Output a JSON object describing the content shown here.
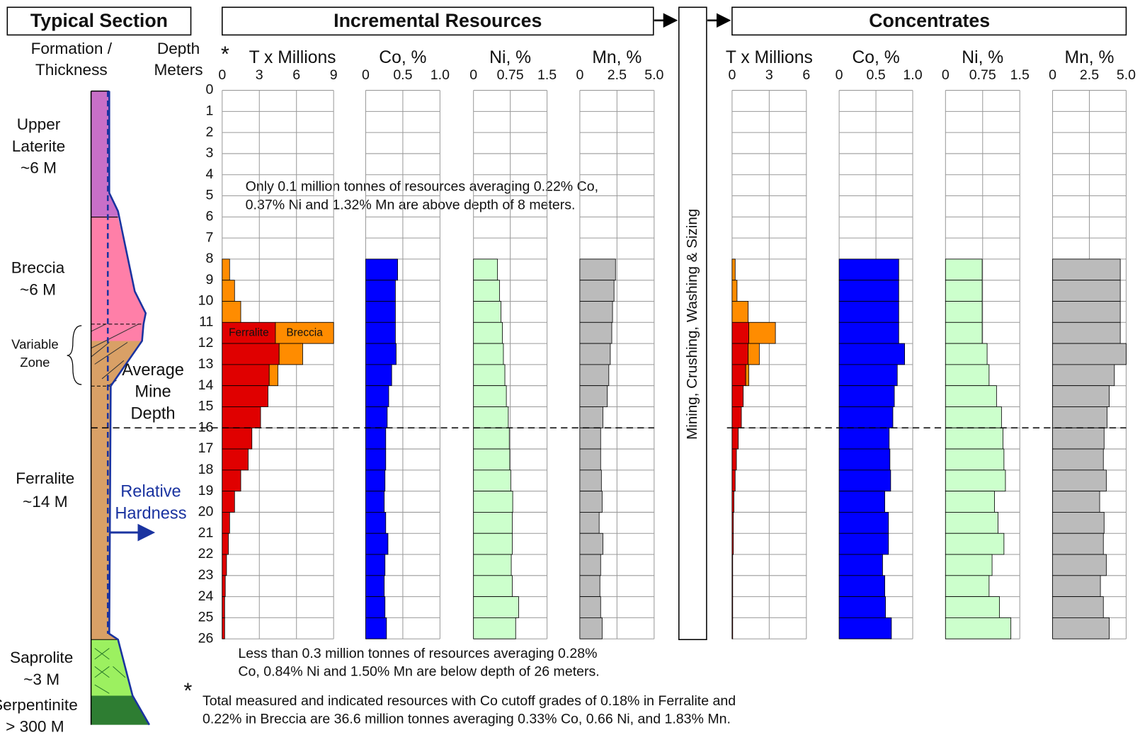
{
  "section_titles": {
    "typical": "Typical Section",
    "incremental": "Incremental Resources",
    "process": "Mining, Crushing, Washing & Sizing",
    "concentrates": "Concentrates"
  },
  "formation_header": [
    "Formation /",
    "Thickness"
  ],
  "depth_header": [
    "Depth",
    "Meters"
  ],
  "formations": [
    [
      "Upper",
      "Laterite",
      "~6 M"
    ],
    [
      "Breccia",
      "~6 M"
    ],
    [
      "Variable",
      "Zone"
    ],
    [
      "Ferralite",
      "~14 M"
    ],
    [
      "Saprolite",
      "~3 M"
    ],
    [
      "Serpentinite",
      "> 300 M"
    ]
  ],
  "mine_depth": {
    "label": [
      "Average",
      "Mine",
      "Depth"
    ],
    "depth": 16
  },
  "hardness_label": [
    "Relative",
    "Hardness"
  ],
  "notes": {
    "footnote_mark": "*",
    "above": [
      "Only 0.1 million tonnes of resources averaging 0.22% Co,",
      "0.37% Ni and 1.32% Mn are above depth of 8 meters."
    ],
    "below": [
      "Less than 0.3 million tonnes of resources averaging 0.28%",
      "Co, 0.84% Ni and 1.50% Mn are below depth of 26 meters."
    ],
    "footnote": [
      "Total measured and indicated resources with Co cutoff grades of  0.18% in Ferralite and",
      "0.22% in Breccia are 36.6 million tonnes averaging 0.33% Co, 0.66 Ni, and 1.83% Mn."
    ]
  },
  "chart_data": [
    {
      "type": "histogram",
      "orientation": "horizontal",
      "title": "T x Millions",
      "footnoted": true,
      "xlim": [
        0,
        9
      ],
      "xticks": [
        0,
        3,
        6,
        9
      ],
      "ylim": [
        0,
        26
      ],
      "yticks": [
        0,
        1,
        2,
        3,
        4,
        5,
        6,
        7,
        8,
        9,
        10,
        11,
        12,
        13,
        14,
        15,
        16,
        17,
        18,
        19,
        20,
        21,
        22,
        23,
        24,
        25,
        26
      ],
      "grid": true,
      "bins": [
        8,
        9,
        10,
        11,
        12,
        13,
        14,
        15,
        16,
        17,
        18,
        19,
        20,
        21,
        22,
        23,
        24,
        25,
        26
      ],
      "series": [
        {
          "name": "Ferralite",
          "color": "#e00000",
          "values": [
            0,
            0,
            0,
            4.3,
            4.6,
            3.8,
            3.7,
            3.1,
            2.4,
            2.1,
            1.5,
            1.0,
            0.6,
            0.5,
            0.35,
            0.25,
            0.2,
            0.2
          ]
        },
        {
          "name": "Breccia",
          "color": "#ff8c00",
          "values": [
            0.6,
            1.0,
            1.5,
            4.7,
            1.9,
            0.7,
            0,
            0,
            0,
            0,
            0,
            0,
            0,
            0,
            0,
            0,
            0,
            0
          ]
        }
      ]
    },
    {
      "type": "histogram",
      "orientation": "horizontal",
      "title": "Co, %",
      "xlim": [
        0,
        1
      ],
      "xticks": [
        0,
        0.5,
        {
          "value": 1,
          "label": "1.0"
        }
      ],
      "ylim": [
        0,
        26
      ],
      "yticks": [
        0,
        1,
        2,
        3,
        4,
        5,
        6,
        7,
        8,
        9,
        10,
        11,
        12,
        13,
        14,
        15,
        16,
        17,
        18,
        19,
        20,
        21,
        22,
        23,
        24,
        25,
        26
      ],
      "grid": true,
      "bins": [
        8,
        9,
        10,
        11,
        12,
        13,
        14,
        15,
        16,
        17,
        18,
        19,
        20,
        21,
        22,
        23,
        24,
        25,
        26
      ],
      "series": [
        {
          "color": "#0000ff",
          "values": [
            0.43,
            0.4,
            0.4,
            0.4,
            0.41,
            0.35,
            0.31,
            0.29,
            0.27,
            0.27,
            0.26,
            0.25,
            0.27,
            0.3,
            0.26,
            0.25,
            0.26,
            0.28
          ]
        }
      ]
    },
    {
      "type": "histogram",
      "orientation": "horizontal",
      "title": "Ni, %",
      "xlim": [
        0,
        1.5
      ],
      "xticks": [
        0,
        0.75,
        1.5
      ],
      "ylim": [
        0,
        26
      ],
      "yticks": [
        0,
        1,
        2,
        3,
        4,
        5,
        6,
        7,
        8,
        9,
        10,
        11,
        12,
        13,
        14,
        15,
        16,
        17,
        18,
        19,
        20,
        21,
        22,
        23,
        24,
        25,
        26
      ],
      "grid": true,
      "bins": [
        8,
        9,
        10,
        11,
        12,
        13,
        14,
        15,
        16,
        17,
        18,
        19,
        20,
        21,
        22,
        23,
        24,
        25,
        26
      ],
      "series": [
        {
          "color": "#ccffcc",
          "values": [
            0.49,
            0.53,
            0.56,
            0.59,
            0.61,
            0.64,
            0.67,
            0.71,
            0.73,
            0.74,
            0.76,
            0.8,
            0.79,
            0.79,
            0.77,
            0.79,
            0.92,
            0.86
          ]
        }
      ]
    },
    {
      "type": "histogram",
      "orientation": "horizontal",
      "title": "Mn, %",
      "xlim": [
        0,
        5
      ],
      "xticks": [
        0,
        2.5,
        {
          "value": 5,
          "label": "5.0"
        }
      ],
      "ylim": [
        0,
        26
      ],
      "yticks": [
        0,
        1,
        2,
        3,
        4,
        5,
        6,
        7,
        8,
        9,
        10,
        11,
        12,
        13,
        14,
        15,
        16,
        17,
        18,
        19,
        20,
        21,
        22,
        23,
        24,
        25,
        26
      ],
      "grid": true,
      "bins": [
        8,
        9,
        10,
        11,
        12,
        13,
        14,
        15,
        16,
        17,
        18,
        19,
        20,
        21,
        22,
        23,
        24,
        25,
        26
      ],
      "series": [
        {
          "color": "#bbbbbb",
          "values": [
            2.4,
            2.3,
            2.2,
            2.15,
            2.05,
            1.95,
            1.85,
            1.55,
            1.4,
            1.4,
            1.45,
            1.5,
            1.3,
            1.55,
            1.4,
            1.35,
            1.4,
            1.5
          ]
        }
      ]
    },
    {
      "type": "histogram",
      "orientation": "horizontal",
      "title": "T x Millions",
      "xlim": [
        0,
        6
      ],
      "xticks": [
        0,
        3,
        6
      ],
      "ylim": [
        0,
        26
      ],
      "yticks": [
        0,
        1,
        2,
        3,
        4,
        5,
        6,
        7,
        8,
        9,
        10,
        11,
        12,
        13,
        14,
        15,
        16,
        17,
        18,
        19,
        20,
        21,
        22,
        23,
        24,
        25,
        26
      ],
      "grid": true,
      "bins": [
        8,
        9,
        10,
        11,
        12,
        13,
        14,
        15,
        16,
        17,
        18,
        19,
        20,
        21,
        22,
        23,
        24,
        25,
        26
      ],
      "series": [
        {
          "color": "#e00000",
          "values": [
            0,
            0,
            0,
            1.35,
            1.3,
            1.1,
            0.9,
            0.75,
            0.5,
            0.35,
            0.25,
            0.15,
            0.1,
            0.1,
            0.05,
            0.05,
            0.05,
            0.05
          ]
        },
        {
          "color": "#ff8c00",
          "values": [
            0.25,
            0.4,
            1.3,
            2.15,
            0.9,
            0.25,
            0,
            0,
            0,
            0,
            0,
            0,
            0,
            0,
            0,
            0,
            0,
            0
          ]
        }
      ]
    },
    {
      "type": "histogram",
      "orientation": "horizontal",
      "title": "Co, %",
      "xlim": [
        0,
        1
      ],
      "xticks": [
        0,
        0.5,
        {
          "value": 1,
          "label": "1.0"
        }
      ],
      "ylim": [
        0,
        26
      ],
      "yticks": [
        0,
        1,
        2,
        3,
        4,
        5,
        6,
        7,
        8,
        9,
        10,
        11,
        12,
        13,
        14,
        15,
        16,
        17,
        18,
        19,
        20,
        21,
        22,
        23,
        24,
        25,
        26
      ],
      "grid": true,
      "bins": [
        8,
        9,
        10,
        11,
        12,
        13,
        14,
        15,
        16,
        17,
        18,
        19,
        20,
        21,
        22,
        23,
        24,
        25,
        26
      ],
      "series": [
        {
          "color": "#0000ff",
          "values": [
            0.81,
            0.81,
            0.81,
            0.81,
            0.89,
            0.79,
            0.75,
            0.73,
            0.68,
            0.69,
            0.7,
            0.62,
            0.67,
            0.67,
            0.59,
            0.62,
            0.63,
            0.71
          ]
        }
      ]
    },
    {
      "type": "histogram",
      "orientation": "horizontal",
      "title": "Ni, %",
      "xlim": [
        0,
        1.5
      ],
      "xticks": [
        0,
        0.75,
        1.5
      ],
      "ylim": [
        0,
        26
      ],
      "yticks": [
        0,
        1,
        2,
        3,
        4,
        5,
        6,
        7,
        8,
        9,
        10,
        11,
        12,
        13,
        14,
        15,
        16,
        17,
        18,
        19,
        20,
        21,
        22,
        23,
        24,
        25,
        26
      ],
      "grid": true,
      "bins": [
        8,
        9,
        10,
        11,
        12,
        13,
        14,
        15,
        16,
        17,
        18,
        19,
        20,
        21,
        22,
        23,
        24,
        25,
        26
      ],
      "series": [
        {
          "color": "#ccffcc",
          "values": [
            0.74,
            0.74,
            0.74,
            0.74,
            0.84,
            0.88,
            1.03,
            1.13,
            1.16,
            1.18,
            1.21,
            0.99,
            1.06,
            1.18,
            0.94,
            0.88,
            1.09,
            1.32
          ]
        }
      ]
    },
    {
      "type": "histogram",
      "orientation": "horizontal",
      "title": "Mn, %",
      "xlim": [
        0,
        5
      ],
      "xticks": [
        0,
        2.5,
        {
          "value": 5,
          "label": "5.0"
        }
      ],
      "ylim": [
        0,
        26
      ],
      "yticks": [
        0,
        1,
        2,
        3,
        4,
        5,
        6,
        7,
        8,
        9,
        10,
        11,
        12,
        13,
        14,
        15,
        16,
        17,
        18,
        19,
        20,
        21,
        22,
        23,
        24,
        25,
        26
      ],
      "grid": true,
      "bins": [
        8,
        9,
        10,
        11,
        12,
        13,
        14,
        15,
        16,
        17,
        18,
        19,
        20,
        21,
        22,
        23,
        24,
        25,
        26
      ],
      "series": [
        {
          "color": "#bbbbbb",
          "values": [
            4.6,
            4.6,
            4.6,
            4.6,
            5.0,
            4.2,
            3.85,
            3.7,
            3.5,
            3.45,
            3.65,
            3.2,
            3.5,
            3.45,
            3.65,
            3.25,
            3.45,
            3.85
          ]
        }
      ]
    }
  ]
}
